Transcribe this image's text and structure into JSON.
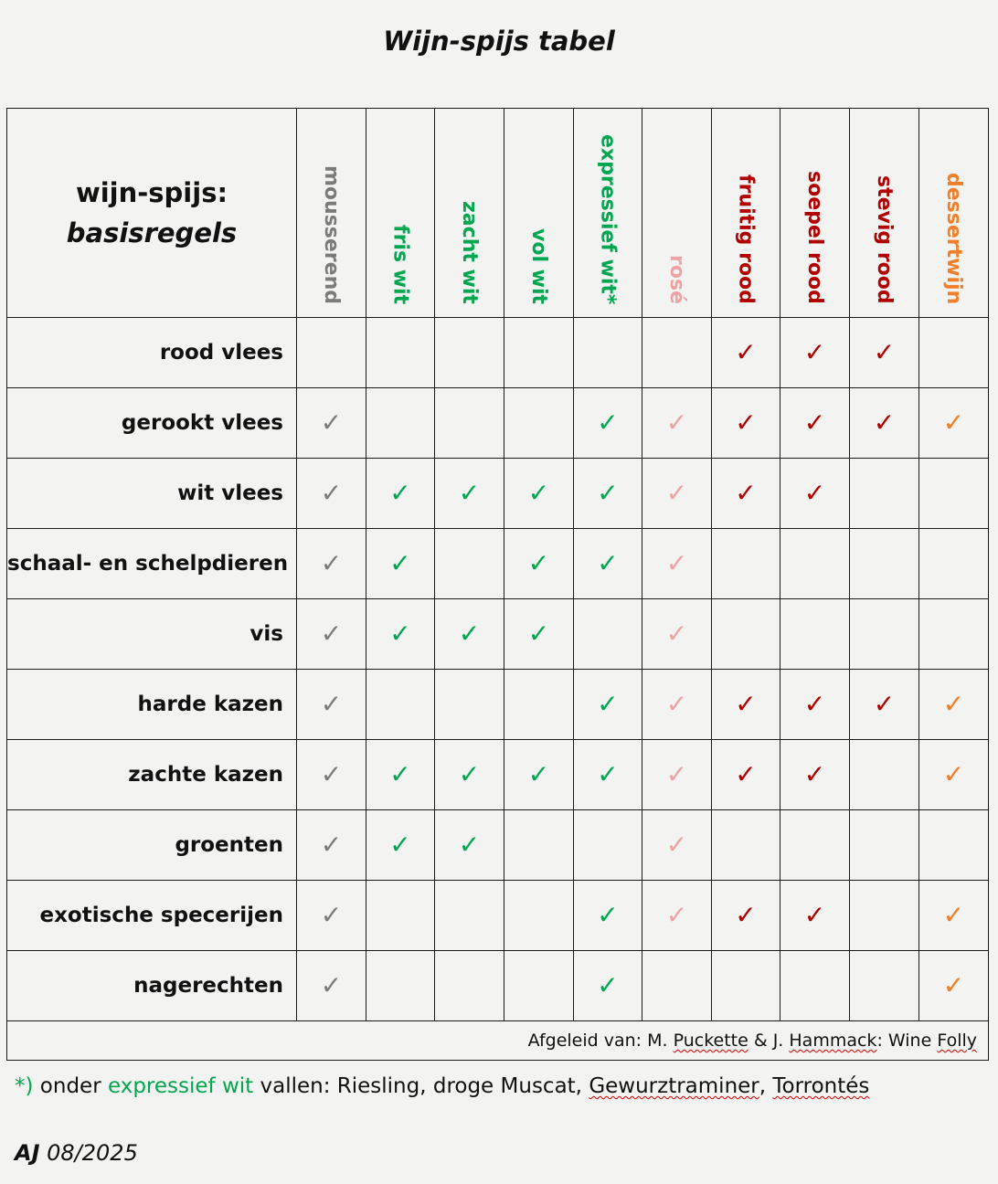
{
  "title": "Wijn-spijs tabel",
  "corner": {
    "line1": "wijn-spijs:",
    "line2": "basisregels"
  },
  "colors": {
    "grey": "#7b7b7b",
    "green": "#00a650",
    "pink": "#eda3a3",
    "red": "#b00000",
    "orange": "#ef7f2a"
  },
  "check_symbol": "✓",
  "columns": [
    {
      "label": "mousserend",
      "color": "grey"
    },
    {
      "label": "fris  wit",
      "color": "green"
    },
    {
      "label": "zacht wit",
      "color": "green"
    },
    {
      "label": "vol wit",
      "color": "green"
    },
    {
      "label": "expressief wit*",
      "color": "green"
    },
    {
      "label": "rosé",
      "color": "pink"
    },
    {
      "label": "fruitig rood",
      "color": "red"
    },
    {
      "label": "soepel rood",
      "color": "red"
    },
    {
      "label": "stevig rood",
      "color": "red"
    },
    {
      "label": "dessertwijn",
      "color": "orange"
    }
  ],
  "rows": [
    {
      "label": "rood vlees",
      "marks": [
        0,
        0,
        0,
        0,
        0,
        0,
        1,
        1,
        1,
        0
      ]
    },
    {
      "label": "gerookt vlees",
      "marks": [
        1,
        0,
        0,
        0,
        1,
        1,
        1,
        1,
        1,
        1
      ]
    },
    {
      "label": "wit vlees",
      "marks": [
        1,
        1,
        1,
        1,
        1,
        1,
        1,
        1,
        0,
        0
      ]
    },
    {
      "label": "schaal- en schelpdieren",
      "marks": [
        1,
        1,
        0,
        1,
        1,
        1,
        0,
        0,
        0,
        0
      ]
    },
    {
      "label": "vis",
      "marks": [
        1,
        1,
        1,
        1,
        0,
        1,
        0,
        0,
        0,
        0
      ]
    },
    {
      "label": "harde kazen",
      "marks": [
        1,
        0,
        0,
        0,
        1,
        1,
        1,
        1,
        1,
        1
      ]
    },
    {
      "label": "zachte kazen",
      "marks": [
        1,
        1,
        1,
        1,
        1,
        1,
        1,
        1,
        0,
        1
      ]
    },
    {
      "label": "groenten",
      "marks": [
        1,
        1,
        1,
        0,
        0,
        1,
        0,
        0,
        0,
        0
      ]
    },
    {
      "label": "exotische specerijen",
      "marks": [
        1,
        0,
        0,
        0,
        1,
        1,
        1,
        1,
        0,
        1
      ]
    },
    {
      "label": "nagerechten",
      "marks": [
        1,
        0,
        0,
        0,
        1,
        0,
        0,
        0,
        0,
        1
      ]
    }
  ],
  "footer": {
    "prefix": "Afgeleid van: M. ",
    "author1_surname": "Puckette",
    "middle": " & J. ",
    "author2_surname": "Hammack",
    "suffix": ": Wine ",
    "folly": "Folly"
  },
  "note": {
    "marker": "*)",
    "text1": " onder ",
    "highlight": "expressief wit",
    "text2": " vallen: Riesling, droge Muscat, ",
    "grape1": "Gewurztraminer",
    "sep": ", ",
    "grape2": "Torrontés"
  },
  "signature": {
    "initials": "AJ",
    "date": " 08/2025"
  }
}
